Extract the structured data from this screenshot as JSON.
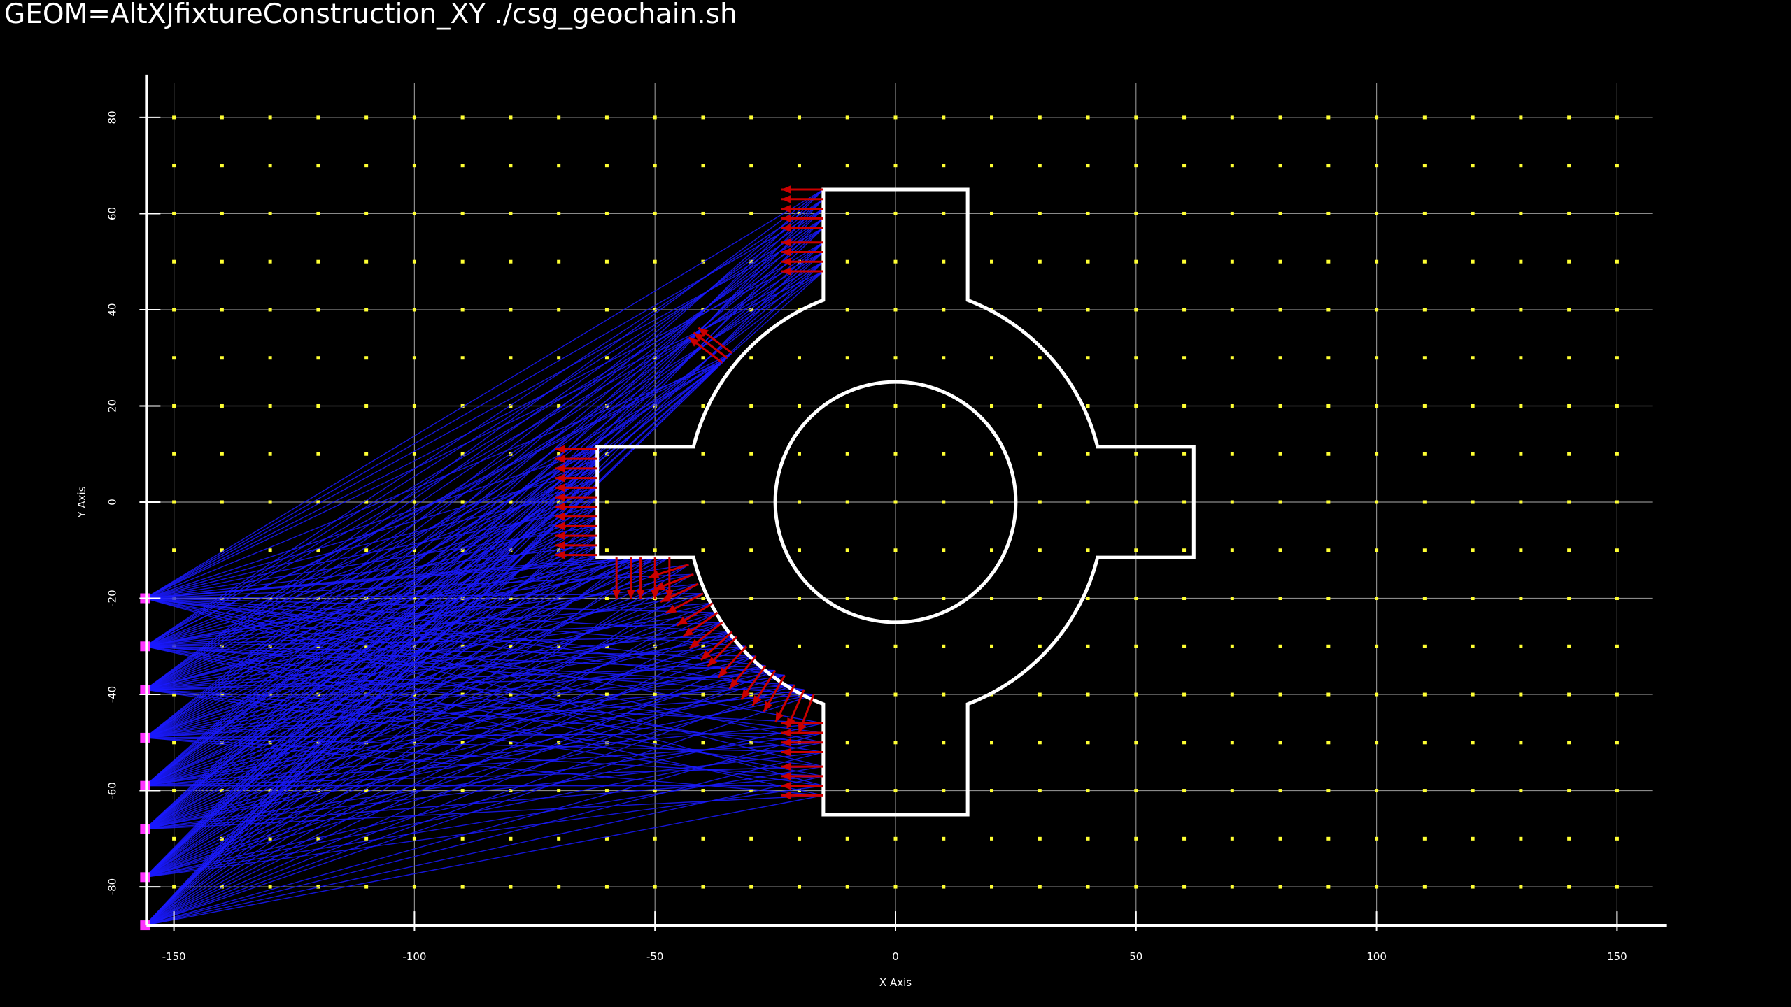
{
  "title": "GEOM=AltXJfixtureConstruction_XY ./csg_geochain.sh",
  "chart_data": {
    "type": "scatter",
    "xlabel": "X Axis",
    "ylabel": "Y Axis",
    "xlim": [
      -156,
      156
    ],
    "ylim": [
      -88,
      88
    ],
    "xticks": [
      -150,
      -100,
      -50,
      0,
      50,
      100,
      150
    ],
    "yticks": [
      80,
      60,
      40,
      20,
      0,
      -20,
      -40,
      -60,
      -80
    ],
    "grid": true,
    "grid_points": {
      "spacing": 10,
      "color": "#ffff33"
    },
    "shape": {
      "name": "fixture-outline",
      "color": "#ffffff",
      "inner_circle": {
        "cx": 0,
        "cy": 0,
        "r": 25
      },
      "outer_radius": 44,
      "outline": [
        [
          -15,
          65
        ],
        [
          15,
          65
        ],
        [
          15,
          42
        ],
        [
          42,
          11.5
        ],
        [
          62,
          11.5
        ],
        [
          62,
          -11.5
        ],
        [
          42,
          -11.5
        ],
        [
          15,
          -42
        ],
        [
          15,
          -65
        ],
        [
          -15,
          -65
        ],
        [
          -15,
          -42
        ],
        [
          -42,
          -11.5
        ],
        [
          -62,
          -11.5
        ],
        [
          -62,
          11.5
        ],
        [
          -42,
          11.5
        ],
        [
          -15,
          42
        ]
      ]
    },
    "sources": {
      "color": "#ff33ff",
      "x": -156,
      "y": [
        -20,
        -30,
        -39,
        -49,
        -59,
        -68,
        -78,
        -88
      ]
    },
    "rays": {
      "color": "#1a1aff"
    },
    "normals": {
      "color": "#cc0000",
      "points": [
        [
          -15,
          65,
          -1,
          0
        ],
        [
          -15,
          63,
          -1,
          0
        ],
        [
          -15,
          61,
          -1,
          0
        ],
        [
          -15,
          59,
          -1,
          0
        ],
        [
          -15,
          57,
          -1,
          0
        ],
        [
          -15,
          54,
          -1,
          0
        ],
        [
          -15,
          52,
          -1,
          0
        ],
        [
          -15,
          50,
          -1,
          0
        ],
        [
          -15,
          48,
          -1,
          0
        ],
        [
          -35,
          30,
          -0.8,
          0.6
        ],
        [
          -36,
          29,
          -0.8,
          0.6
        ],
        [
          -34,
          31,
          -0.8,
          0.6
        ],
        [
          -62,
          11,
          -1,
          0
        ],
        [
          -62,
          9,
          -1,
          0
        ],
        [
          -62,
          7,
          -1,
          0
        ],
        [
          -62,
          5,
          -1,
          0
        ],
        [
          -62,
          3,
          -1,
          0
        ],
        [
          -62,
          1,
          -1,
          0
        ],
        [
          -62,
          -1,
          -1,
          0
        ],
        [
          -62,
          -3,
          -1,
          0
        ],
        [
          -62,
          -5,
          -1,
          0
        ],
        [
          -62,
          -7,
          -1,
          0
        ],
        [
          -62,
          -9,
          -1,
          0
        ],
        [
          -62,
          -11,
          -1,
          0
        ],
        [
          -58,
          -11.5,
          0,
          -1
        ],
        [
          -55,
          -11.5,
          0,
          -1
        ],
        [
          -53,
          -11.5,
          0,
          -1
        ],
        [
          -50,
          -11.5,
          0,
          -1
        ],
        [
          -47,
          -11.5,
          0,
          -1
        ],
        [
          -43,
          -13,
          -0.95,
          -0.3
        ],
        [
          -42,
          -15,
          -0.93,
          -0.36
        ],
        [
          -41,
          -17,
          -0.9,
          -0.43
        ],
        [
          -40,
          -19,
          -0.88,
          -0.47
        ],
        [
          -38,
          -21,
          -0.85,
          -0.53
        ],
        [
          -37,
          -23,
          -0.82,
          -0.57
        ],
        [
          -36,
          -25,
          -0.78,
          -0.62
        ],
        [
          -34,
          -27,
          -0.74,
          -0.67
        ],
        [
          -33,
          -28,
          -0.7,
          -0.71
        ],
        [
          -31,
          -30,
          -0.67,
          -0.74
        ],
        [
          -29,
          -32,
          -0.63,
          -0.78
        ],
        [
          -27,
          -34,
          -0.58,
          -0.81
        ],
        [
          -25,
          -35,
          -0.54,
          -0.84
        ],
        [
          -23,
          -36,
          -0.5,
          -0.87
        ],
        [
          -21,
          -38,
          -0.45,
          -0.89
        ],
        [
          -19,
          -39,
          -0.4,
          -0.92
        ],
        [
          -17,
          -40,
          -0.36,
          -0.93
        ],
        [
          -15,
          -46,
          -1,
          0
        ],
        [
          -15,
          -48,
          -1,
          0
        ],
        [
          -15,
          -50,
          -1,
          0
        ],
        [
          -15,
          -52,
          -1,
          0
        ],
        [
          -15,
          -55,
          -1,
          0
        ],
        [
          -15,
          -57,
          -1,
          0
        ],
        [
          -15,
          -59,
          -1,
          0
        ],
        [
          -15,
          -61,
          -1,
          0
        ]
      ]
    }
  }
}
